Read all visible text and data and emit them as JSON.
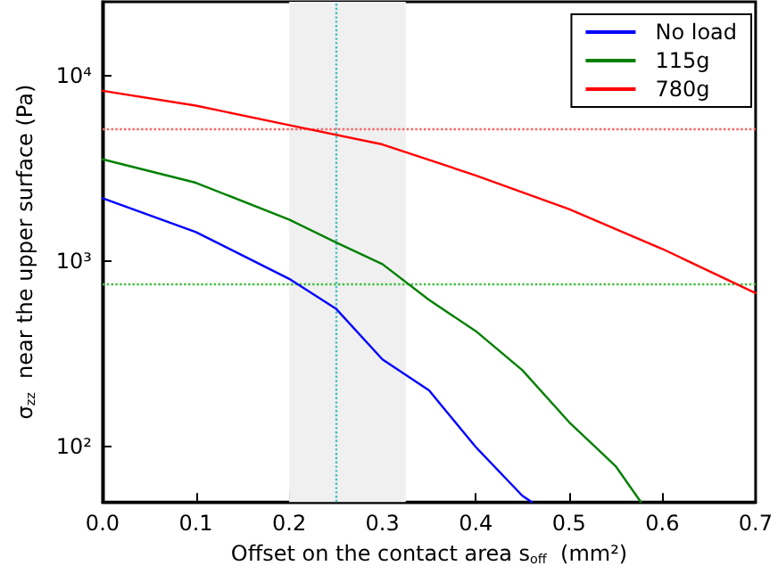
{
  "chart_data": {
    "type": "line",
    "xlabel": "Offset on the contact area s$_{off}$  (mm²)",
    "ylabel": "σ$_{zz}$  near the upper surface (Pa)",
    "log": "y",
    "grid": false,
    "legend": "top right",
    "marker": "none",
    "line_style": "solid",
    "xlim": [
      0,
      0.7
    ],
    "xticks": [
      {
        "value": 0,
        "label": "0.0"
      },
      0.1,
      0.2,
      0.3,
      0.4,
      0.5,
      0.6,
      0.7
    ],
    "ylim": [
      50,
      25000
    ],
    "yticks": [
      {
        "value": 100,
        "label": "10²"
      },
      {
        "value": 1000,
        "label": "10³"
      },
      {
        "value": 10000,
        "label": "10⁴"
      }
    ],
    "series": [
      {
        "name": "No load",
        "color": "#0000ff",
        "x": [
          0,
          0.1,
          0.2,
          0.25,
          0.3,
          0.35,
          0.4,
          0.45,
          0.46
        ],
        "values": [
          2180,
          1430,
          800,
          553,
          294,
          200,
          99,
          54,
          50
        ]
      },
      {
        "name": "115g",
        "color": "#008000",
        "x": [
          0,
          0.1,
          0.2,
          0.25,
          0.3,
          0.35,
          0.4,
          0.45,
          0.5,
          0.55,
          0.577
        ],
        "values": [
          3530,
          2640,
          1670,
          1260,
          960,
          615,
          418,
          257,
          135,
          78,
          50
        ]
      },
      {
        "name": "780g",
        "color": "#ff0000",
        "x": [
          0,
          0.1,
          0.2,
          0.3,
          0.4,
          0.5,
          0.6,
          0.7
        ],
        "values": [
          8270,
          6880,
          5400,
          4250,
          2890,
          1900,
          1160,
          670
        ]
      }
    ],
    "bands": [
      {
        "axis": "x",
        "from": 0.2,
        "to": 0.325,
        "color": "#f0f0f0"
      }
    ],
    "ref_lines": [
      {
        "axis": "x",
        "value": 0.25,
        "color": "#40c0c0",
        "line_style": "dotted"
      },
      {
        "axis": "y",
        "value": 5150,
        "color": "#ff6060",
        "line_style": "dotted"
      },
      {
        "axis": "y",
        "value": 750,
        "color": "#40c040",
        "line_style": "dotted"
      }
    ]
  }
}
